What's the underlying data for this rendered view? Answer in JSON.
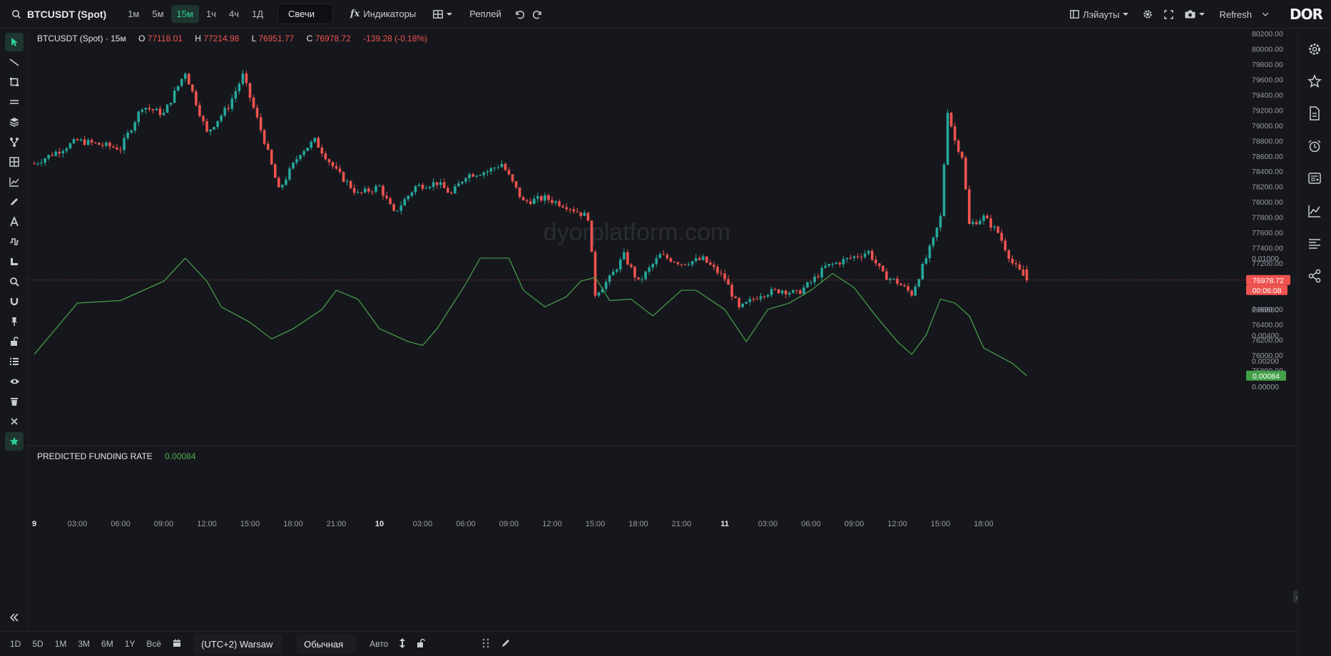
{
  "header": {
    "symbol": "BTCUSDT (Spot)",
    "timeframes": [
      "1м",
      "5м",
      "15м",
      "1ч",
      "4ч",
      "1Д"
    ],
    "active_timeframe": "15м",
    "chart_type": "Свечи",
    "indicators_label": "Индикаторы",
    "replay_label": "Реплей",
    "layouts_label": "Лэйауты",
    "refresh_label": "Refresh",
    "logo": "DOR"
  },
  "legend": {
    "symbol_tf": "BTCUSDT (Spot) · 15м",
    "o_label": "O",
    "o_value": "77118.01",
    "h_label": "H",
    "h_value": "77214.98",
    "l_label": "L",
    "l_value": "76951.77",
    "c_label": "C",
    "c_value": "76978.72",
    "change": "-139.28 (-0.18%)"
  },
  "indicator": {
    "name": "PREDICTED FUNDING RATE",
    "value": "0.00084"
  },
  "watermark": "dyorplatform.com",
  "price_axis": {
    "labels": [
      "80200.00",
      "80000.00",
      "79800.00",
      "79600.00",
      "79400.00",
      "79200.00",
      "79000.00",
      "78800.00",
      "78600.00",
      "78400.00",
      "78200.00",
      "78000.00",
      "77800.00",
      "77600.00",
      "77400.00",
      "77200.00",
      "76600.00",
      "76400.00",
      "76200.00",
      "76000.00",
      "75800.00"
    ],
    "last_price": "76978.72",
    "countdown": "00:06:08"
  },
  "funding_axis": {
    "labels": [
      "0.01000",
      "0.00800",
      "0.00600",
      "0.00400",
      "0.00200",
      "0.00000"
    ],
    "last_value": "0.00084"
  },
  "time_axis": {
    "labels": [
      {
        "t": "9",
        "bold": true
      },
      {
        "t": "03:00"
      },
      {
        "t": "06:00"
      },
      {
        "t": "09:00"
      },
      {
        "t": "12:00"
      },
      {
        "t": "15:00"
      },
      {
        "t": "18:00"
      },
      {
        "t": "21:00"
      },
      {
        "t": "10",
        "bold": true
      },
      {
        "t": "03:00"
      },
      {
        "t": "06:00"
      },
      {
        "t": "09:00"
      },
      {
        "t": "12:00"
      },
      {
        "t": "15:00"
      },
      {
        "t": "18:00"
      },
      {
        "t": "21:00"
      },
      {
        "t": "11",
        "bold": true
      },
      {
        "t": "03:00"
      },
      {
        "t": "06:00"
      },
      {
        "t": "09:00"
      },
      {
        "t": "12:00"
      },
      {
        "t": "15:00"
      },
      {
        "t": "18:00"
      }
    ]
  },
  "bottom": {
    "ranges": [
      "1D",
      "5D",
      "1M",
      "3M",
      "6M",
      "1Y",
      "Всё"
    ],
    "timezone": "(UTC+2) Warsaw",
    "scale_mode": "Обычная",
    "auto_label": "Авто"
  },
  "colors": {
    "up": "#26a69a",
    "down": "#ef5350",
    "funding": "#4caf50",
    "accent": "#2fd096"
  },
  "chart_data": [
    {
      "type": "candlestick",
      "title": "BTCUSDT (Spot) · 15м",
      "x_range": [
        "9",
        "11 21:00"
      ],
      "ylim": [
        75800,
        80200
      ],
      "last": {
        "o": 77118.01,
        "h": 77214.98,
        "l": 76951.77,
        "c": 76978.72
      },
      "path_close": [
        {
          "x": "9 00:00",
          "y": 78500
        },
        {
          "x": "9 03:00",
          "y": 78800
        },
        {
          "x": "9 06:00",
          "y": 78700
        },
        {
          "x": "9 07:30",
          "y": 79250
        },
        {
          "x": "9 09:00",
          "y": 79150
        },
        {
          "x": "9 10:30",
          "y": 79700
        },
        {
          "x": "9 12:00",
          "y": 78900
        },
        {
          "x": "9 13:30",
          "y": 79250
        },
        {
          "x": "9 14:30",
          "y": 79650
        },
        {
          "x": "9 16:00",
          "y": 78800
        },
        {
          "x": "9 17:00",
          "y": 78150
        },
        {
          "x": "9 18:30",
          "y": 78650
        },
        {
          "x": "9 19:30",
          "y": 78800
        },
        {
          "x": "9 21:00",
          "y": 78400
        },
        {
          "x": "9 22:30",
          "y": 78100
        },
        {
          "x": "10 00:00",
          "y": 78200
        },
        {
          "x": "10 01:00",
          "y": 77850
        },
        {
          "x": "10 02:30",
          "y": 78200
        },
        {
          "x": "10 04:00",
          "y": 78250
        },
        {
          "x": "10 05:00",
          "y": 78100
        },
        {
          "x": "10 06:00",
          "y": 78350
        },
        {
          "x": "10 07:30",
          "y": 78400
        },
        {
          "x": "10 08:30",
          "y": 78500
        },
        {
          "x": "10 10:00",
          "y": 78000
        },
        {
          "x": "10 11:30",
          "y": 78050
        },
        {
          "x": "10 13:00",
          "y": 77950
        },
        {
          "x": "10 14:30",
          "y": 77800
        },
        {
          "x": "10 15:00",
          "y": 76800
        },
        {
          "x": "10 16:00",
          "y": 77000
        },
        {
          "x": "10 17:00",
          "y": 77300
        },
        {
          "x": "10 18:00",
          "y": 76950
        },
        {
          "x": "10 19:30",
          "y": 77300
        },
        {
          "x": "10 21:00",
          "y": 77200
        },
        {
          "x": "10 22:30",
          "y": 77250
        },
        {
          "x": "11 00:00",
          "y": 77000
        },
        {
          "x": "11 01:00",
          "y": 76600
        },
        {
          "x": "11 02:30",
          "y": 76800
        },
        {
          "x": "11 04:00",
          "y": 76850
        },
        {
          "x": "11 05:00",
          "y": 76800
        },
        {
          "x": "11 06:00",
          "y": 76950
        },
        {
          "x": "11 07:00",
          "y": 77150
        },
        {
          "x": "11 08:30",
          "y": 77250
        },
        {
          "x": "11 10:00",
          "y": 77350
        },
        {
          "x": "11 11:00",
          "y": 77050
        },
        {
          "x": "11 12:00",
          "y": 76950
        },
        {
          "x": "11 13:00",
          "y": 76800
        },
        {
          "x": "11 14:30",
          "y": 77500
        },
        {
          "x": "11 15:00",
          "y": 77800
        },
        {
          "x": "11 15:30",
          "y": 79200
        },
        {
          "x": "11 16:00",
          "y": 78800
        },
        {
          "x": "11 16:30",
          "y": 78600
        },
        {
          "x": "11 17:00",
          "y": 77700
        },
        {
          "x": "11 18:00",
          "y": 77800
        },
        {
          "x": "11 19:00",
          "y": 77600
        },
        {
          "x": "11 20:00",
          "y": 77200
        },
        {
          "x": "11 21:00",
          "y": 76978.72
        }
      ]
    },
    {
      "type": "line",
      "title": "PREDICTED FUNDING RATE",
      "ylim": [
        0,
        0.01
      ],
      "series": [
        {
          "name": "PREDICTED FUNDING RATE",
          "points": [
            {
              "x": "9 00:00",
              "y": 0.0025
            },
            {
              "x": "9 03:00",
              "y": 0.0065
            },
            {
              "x": "9 06:00",
              "y": 0.0067
            },
            {
              "x": "9 09:00",
              "y": 0.0082
            },
            {
              "x": "9 10:30",
              "y": 0.01
            },
            {
              "x": "9 12:00",
              "y": 0.0082
            },
            {
              "x": "9 13:00",
              "y": 0.0062
            },
            {
              "x": "9 15:00",
              "y": 0.005
            },
            {
              "x": "9 16:30",
              "y": 0.0037
            },
            {
              "x": "9 18:00",
              "y": 0.0045
            },
            {
              "x": "9 20:00",
              "y": 0.006
            },
            {
              "x": "9 21:00",
              "y": 0.0075
            },
            {
              "x": "9 22:30",
              "y": 0.0068
            },
            {
              "x": "10 00:00",
              "y": 0.0045
            },
            {
              "x": "10 02:00",
              "y": 0.0035
            },
            {
              "x": "10 03:00",
              "y": 0.0032
            },
            {
              "x": "10 04:00",
              "y": 0.0045
            },
            {
              "x": "10 06:00",
              "y": 0.008
            },
            {
              "x": "10 07:00",
              "y": 0.01
            },
            {
              "x": "10 09:00",
              "y": 0.01
            },
            {
              "x": "10 10:00",
              "y": 0.0075
            },
            {
              "x": "10 11:30",
              "y": 0.0062
            },
            {
              "x": "10 13:00",
              "y": 0.007
            },
            {
              "x": "10 14:00",
              "y": 0.0082
            },
            {
              "x": "10 15:00",
              "y": 0.0085
            },
            {
              "x": "10 16:00",
              "y": 0.0067
            },
            {
              "x": "10 17:30",
              "y": 0.0068
            },
            {
              "x": "10 19:00",
              "y": 0.0055
            },
            {
              "x": "10 20:00",
              "y": 0.0065
            },
            {
              "x": "10 21:00",
              "y": 0.0075
            },
            {
              "x": "10 22:00",
              "y": 0.0075
            },
            {
              "x": "11 00:00",
              "y": 0.006
            },
            {
              "x": "11 01:30",
              "y": 0.0035
            },
            {
              "x": "11 03:00",
              "y": 0.006
            },
            {
              "x": "11 04:30",
              "y": 0.0065
            },
            {
              "x": "11 06:00",
              "y": 0.0075
            },
            {
              "x": "11 07:30",
              "y": 0.0088
            },
            {
              "x": "11 09:00",
              "y": 0.0077
            },
            {
              "x": "11 10:30",
              "y": 0.0055
            },
            {
              "x": "11 12:00",
              "y": 0.0035
            },
            {
              "x": "11 13:00",
              "y": 0.0025
            },
            {
              "x": "11 14:00",
              "y": 0.004
            },
            {
              "x": "11 15:00",
              "y": 0.0068
            },
            {
              "x": "11 16:00",
              "y": 0.0065
            },
            {
              "x": "11 17:00",
              "y": 0.0055
            },
            {
              "x": "11 18:00",
              "y": 0.003
            },
            {
              "x": "11 20:00",
              "y": 0.0018
            },
            {
              "x": "11 21:00",
              "y": 0.00084
            }
          ]
        }
      ]
    }
  ]
}
